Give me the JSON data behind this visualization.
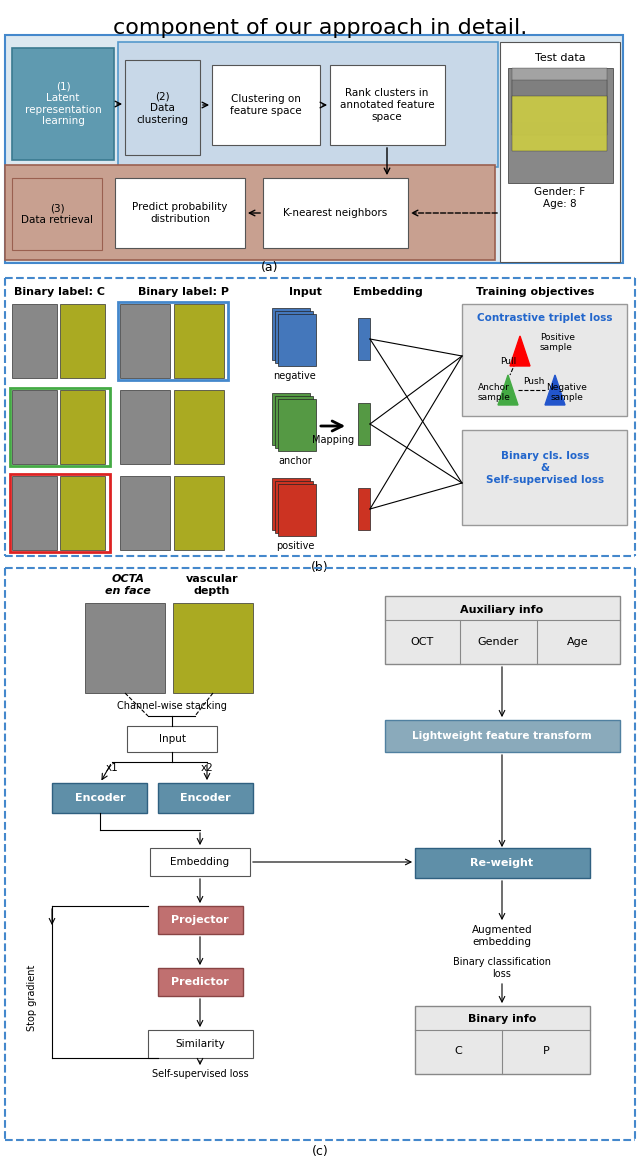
{
  "title_text": "component of our approach in detail.",
  "panel_a": {
    "bg_color": "#c8d8e8",
    "retrieval_bg": "#c8a090",
    "box1_text": "(1)\nLatent\nrepresentation\nlearning",
    "box1_color": "#5f9ab0",
    "box2_text": "(2)\nData\nclustering",
    "box3_text": "Clustering on\nfeature space",
    "box4_text": "Rank clusters in\nannotated feature\nspace",
    "box5_text": "(3)\nData retrieval",
    "box6_text": "Predict probability\ndistribution",
    "box7_text": "K-nearest neighbors",
    "testdata_text": "Test data",
    "gender_age": "Gender: F\nAge: 8"
  },
  "panel_b": {
    "label_c": "Binary label: C",
    "label_p": "Binary label: P",
    "input_label": "Input",
    "embedding_label": "Embedding",
    "training_label": "Training objectives",
    "negative_label": "negative",
    "anchor_label": "anchor",
    "positive_label": "positive",
    "mapping_label": "Mapping",
    "triplet_text": "Contrastive triplet loss",
    "binary_text": "Binary cls. loss\n&\nSelf-supervised loss"
  },
  "panel_c": {
    "octa_label": "OCTA\nen face",
    "vascular_label": "vascular\ndepth",
    "channel_label": "Channel-wise stacking",
    "input_label": "Input",
    "encoder_text": "Encoder",
    "embedding_text": "Embedding",
    "projector_text": "Projector",
    "predictor_text": "Predictor",
    "similarity_text": "Similarity",
    "self_sup_label": "Self-supervised loss",
    "stop_grad_label": "Stop gradient",
    "x1_label": "x1",
    "x2_label": "x2",
    "aux_info_text": "Auxiliary info",
    "oct_text": "OCT",
    "gender_text": "Gender",
    "age_text": "Age",
    "lwft_text": "Lightweight feature transform",
    "reweight_text": "Re-weight",
    "aug_emb_text": "Augmented\nembedding",
    "bin_cls_loss_text": "Binary classification\nloss",
    "binary_info_text": "Binary info",
    "c_text": "C",
    "p_text": "P",
    "encoder_color": "#5f8fa8",
    "projector_color": "#c07070",
    "reweight_color": "#5f8fa8",
    "lwft_color": "#8aaabb"
  },
  "label_a": "(a)",
  "label_b": "(b)",
  "label_c_panel": "(c)"
}
